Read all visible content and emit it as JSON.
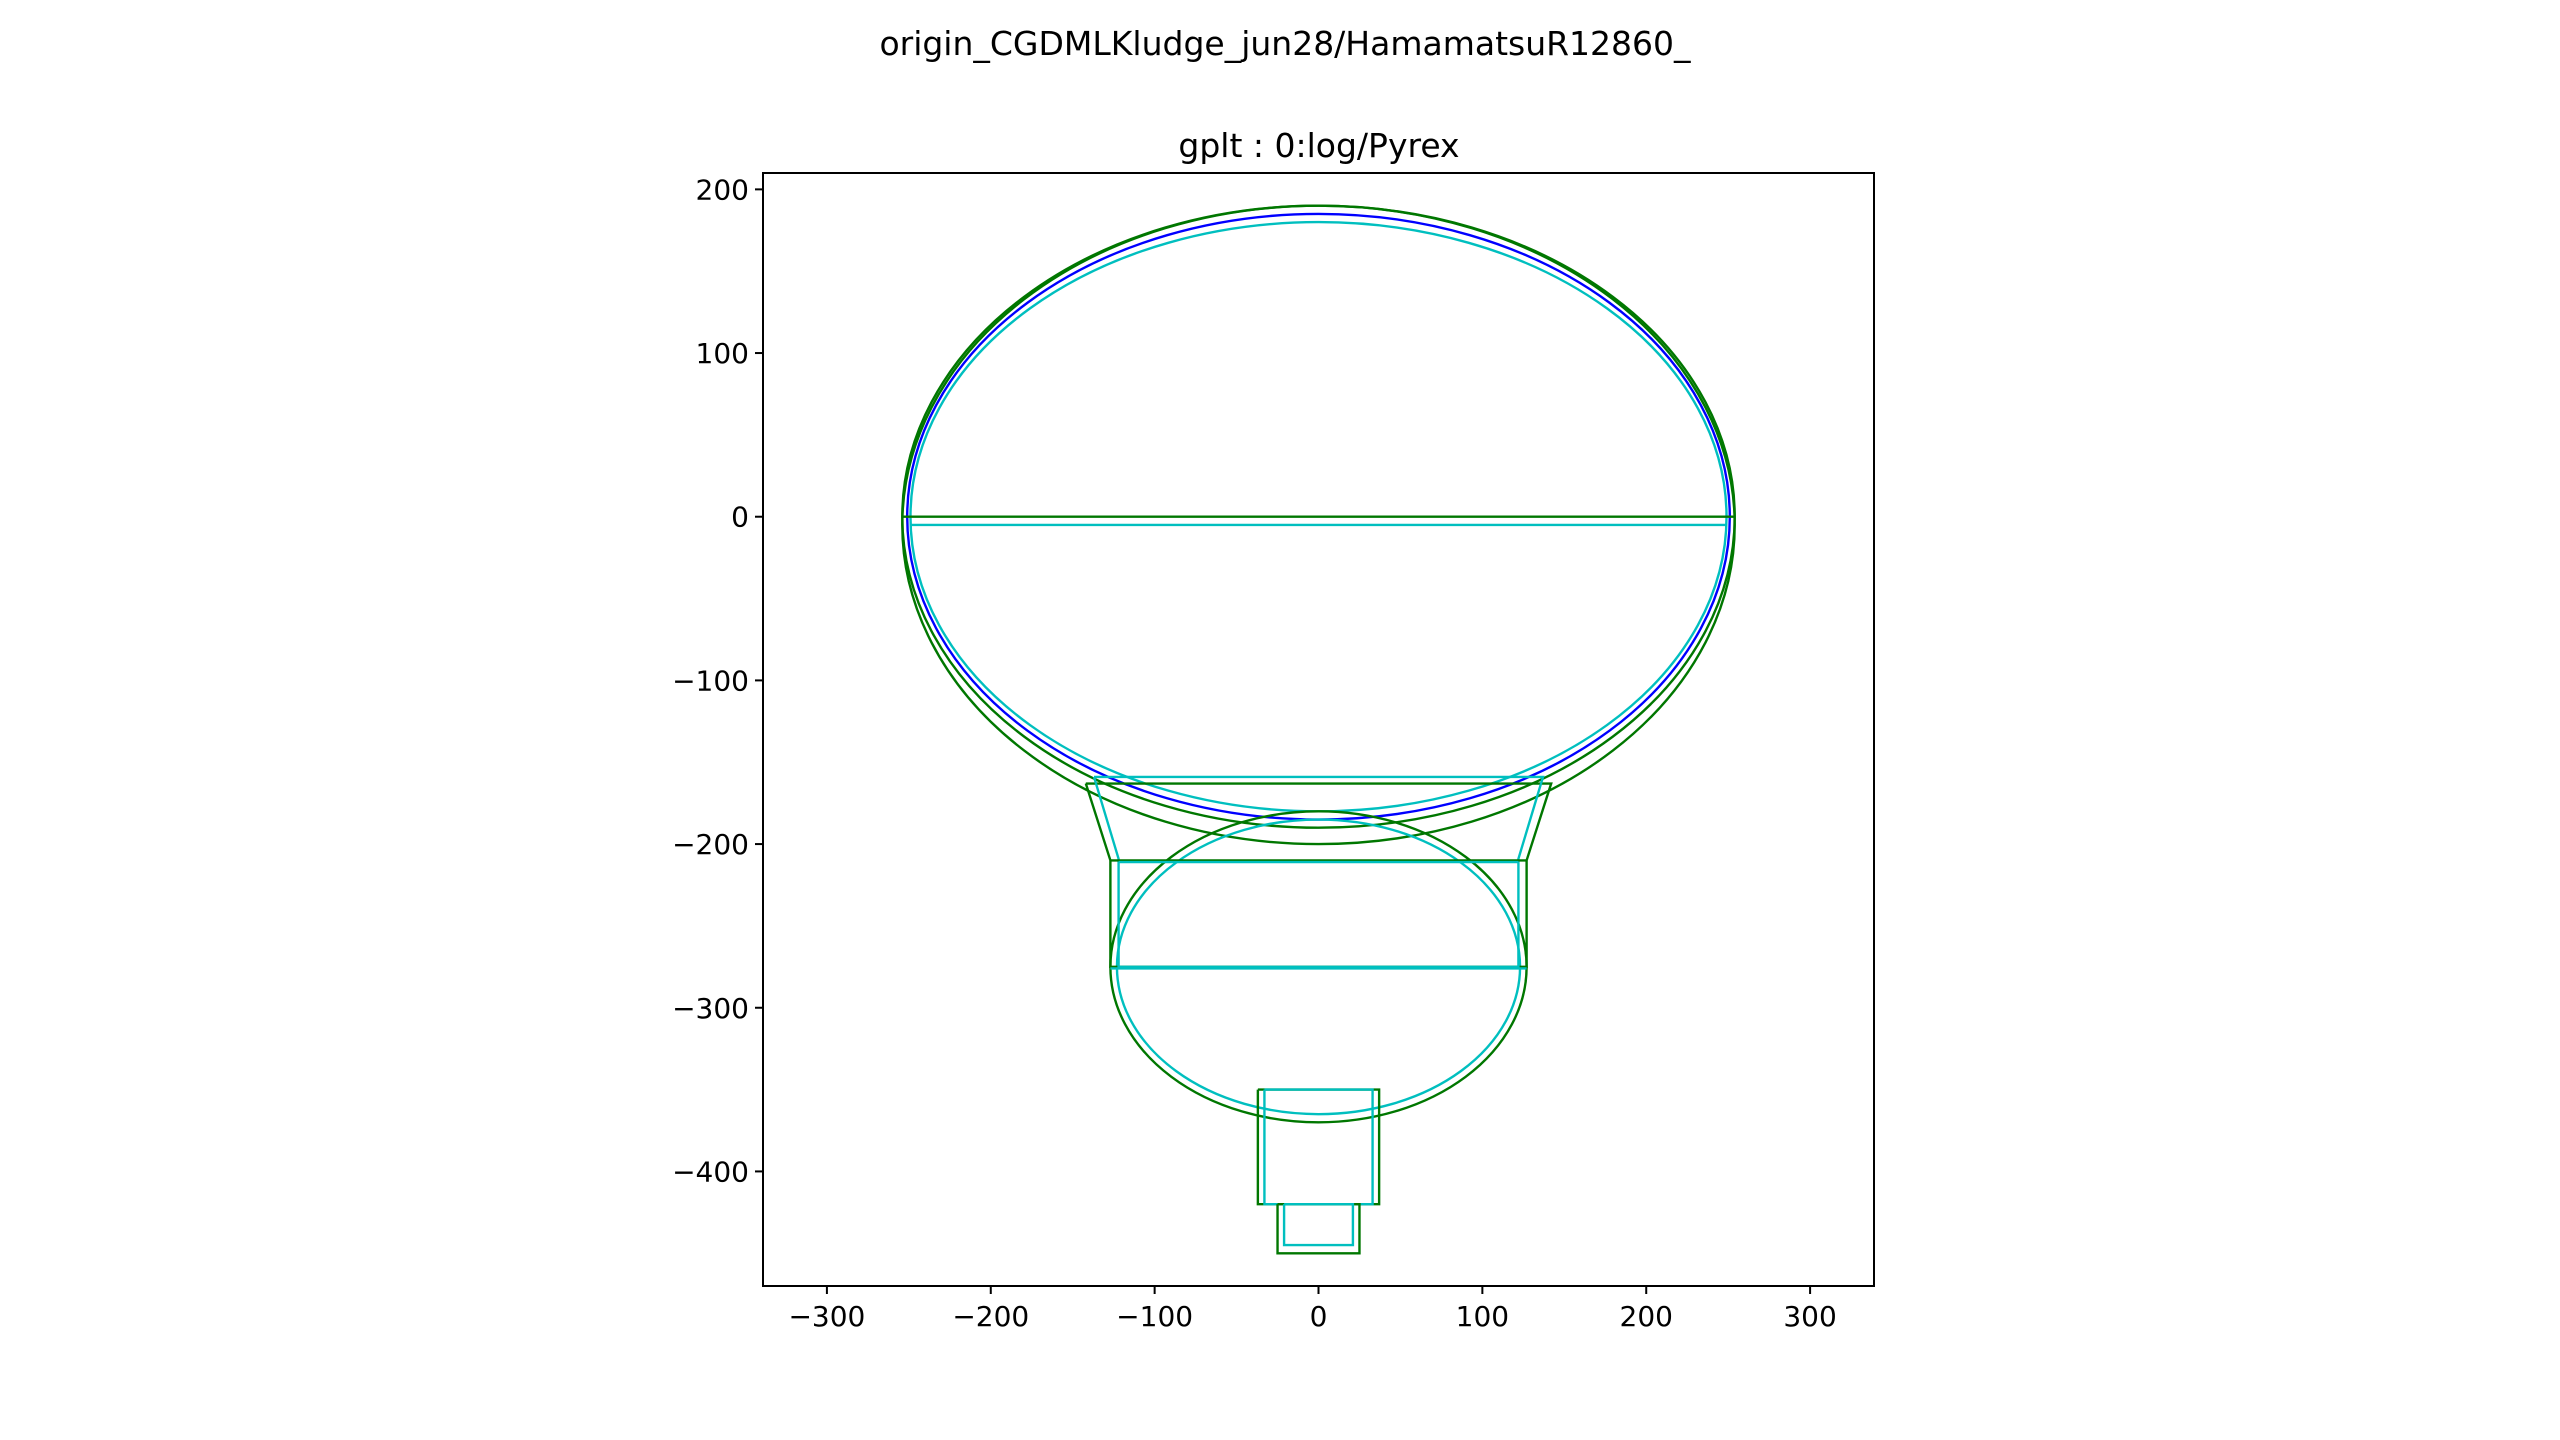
{
  "figure": {
    "suptitle": "origin_CGDMLKludge_jun28/HamamatsuR12860_",
    "axes_title": "gplt : 0:log/Pyrex"
  },
  "chart_data": {
    "type": "line",
    "title": "gplt : 0:log/Pyrex",
    "xlabel": "",
    "ylabel": "",
    "xlim": [
      -339,
      339
    ],
    "ylim": [
      -470,
      210
    ],
    "aspect": "equal",
    "grid": false,
    "legend": "none",
    "x_ticks": [
      -300,
      -200,
      -100,
      0,
      100,
      200,
      300
    ],
    "x_tick_labels": [
      "−300",
      "−200",
      "−100",
      "0",
      "100",
      "200",
      "300"
    ],
    "y_ticks": [
      200,
      100,
      0,
      -100,
      -200,
      -300,
      -400
    ],
    "y_tick_labels": [
      "200",
      "100",
      "0",
      "−100",
      "−200",
      "−300",
      "−400"
    ],
    "colors": {
      "green": "#007700",
      "blue": "#0000ff",
      "cyan": "#00bfbf"
    },
    "ellipses": [
      {
        "color": "green",
        "cx": 0,
        "cy": -5,
        "rx": 254,
        "ry": 195
      },
      {
        "color": "green",
        "cx": 0,
        "cy": 0,
        "rx": 254,
        "ry": 190
      },
      {
        "color": "blue",
        "cx": 0,
        "cy": 0,
        "rx": 251,
        "ry": 185
      },
      {
        "color": "cyan",
        "cx": 0,
        "cy": 0,
        "rx": 249,
        "ry": 180
      },
      {
        "color": "green",
        "cx": 0,
        "cy": -275,
        "rx": 127,
        "ry": 95
      },
      {
        "color": "cyan",
        "cx": 0,
        "cy": -275,
        "rx": 123,
        "ry": 90
      }
    ],
    "polylines": [
      {
        "color": "green",
        "points": [
          [
            -254,
            0
          ],
          [
            254,
            0
          ]
        ]
      },
      {
        "color": "cyan",
        "points": [
          [
            -249,
            -5
          ],
          [
            249,
            -5
          ]
        ]
      },
      {
        "color": "green",
        "points": [
          [
            -142,
            -163
          ],
          [
            142,
            -163
          ],
          [
            127,
            -210
          ],
          [
            127,
            -275
          ],
          [
            -127,
            -275
          ],
          [
            -127,
            -210
          ],
          [
            -142,
            -163
          ]
        ]
      },
      {
        "color": "cyan",
        "points": [
          [
            -137,
            -159
          ],
          [
            137,
            -159
          ],
          [
            122,
            -209
          ],
          [
            122,
            -275
          ],
          [
            -122,
            -275
          ],
          [
            -122,
            -209
          ],
          [
            -137,
            -159
          ]
        ]
      },
      {
        "color": "green",
        "points": [
          [
            -127,
            -210
          ],
          [
            127,
            -210
          ]
        ]
      },
      {
        "color": "cyan",
        "points": [
          [
            -122,
            -211
          ],
          [
            122,
            -211
          ]
        ]
      },
      {
        "color": "cyan",
        "points": [
          [
            -127,
            -276
          ],
          [
            127,
            -276
          ]
        ]
      },
      {
        "color": "green",
        "points": [
          [
            -37,
            -350
          ],
          [
            37,
            -350
          ],
          [
            37,
            -420
          ],
          [
            -37,
            -420
          ],
          [
            -37,
            -350
          ]
        ]
      },
      {
        "color": "cyan",
        "points": [
          [
            -33,
            -350
          ],
          [
            33,
            -350
          ],
          [
            33,
            -420
          ],
          [
            -33,
            -420
          ],
          [
            -33,
            -350
          ]
        ]
      },
      {
        "color": "green",
        "points": [
          [
            -25,
            -420
          ],
          [
            25,
            -420
          ],
          [
            25,
            -450
          ],
          [
            -25,
            -450
          ],
          [
            -25,
            -420
          ]
        ]
      },
      {
        "color": "cyan",
        "points": [
          [
            -21,
            -420
          ],
          [
            21,
            -420
          ],
          [
            21,
            -445
          ],
          [
            -21,
            -445
          ],
          [
            -21,
            -420
          ]
        ]
      }
    ]
  }
}
